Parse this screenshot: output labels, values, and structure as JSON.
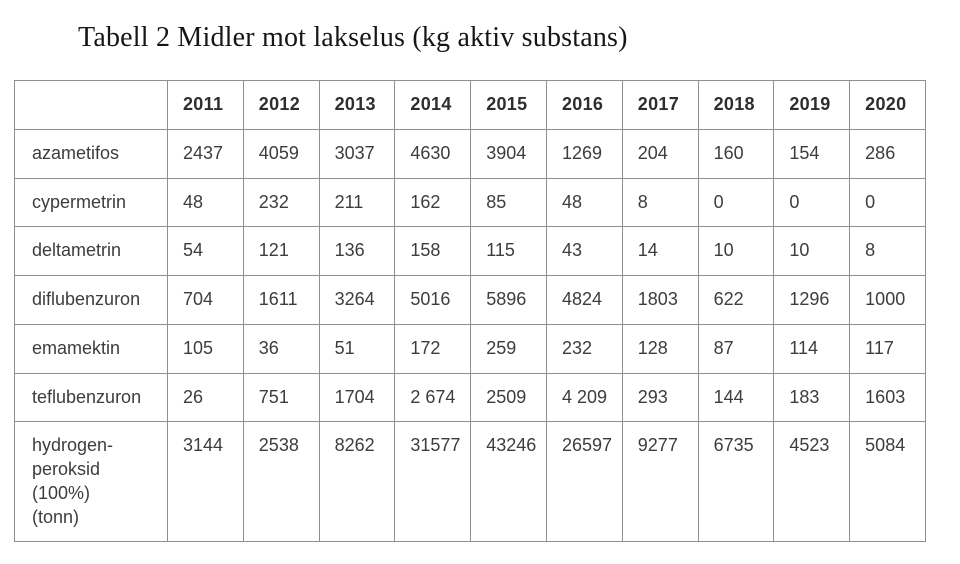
{
  "page": {
    "title": "Tabell 2 Midler mot lakselus (kg aktiv substans)"
  },
  "table": {
    "columns": [
      "",
      "2011",
      "2012",
      "2013",
      "2014",
      "2015",
      "2016",
      "2017",
      "2018",
      "2019",
      "2020"
    ],
    "rows": [
      {
        "label": "azametifos",
        "values": [
          "2437",
          "4059",
          "3037",
          "4630",
          "3904",
          "1269",
          "204",
          "160",
          "154",
          "286"
        ]
      },
      {
        "label": "cypermetrin",
        "values": [
          "48",
          "232",
          "211",
          "162",
          "85",
          "48",
          "8",
          "0",
          "0",
          "0"
        ]
      },
      {
        "label": "deltametrin",
        "values": [
          "54",
          "121",
          "136",
          "158",
          "115",
          "43",
          "14",
          "10",
          "10",
          "8"
        ]
      },
      {
        "label": "diflubenzuron",
        "values": [
          "704",
          "1611",
          "3264",
          "5016",
          "5896",
          "4824",
          "1803",
          "622",
          "1296",
          "1000"
        ]
      },
      {
        "label": "emamektin",
        "values": [
          "105",
          "36",
          "51",
          "172",
          "259",
          "232",
          "128",
          "87",
          "114",
          "117"
        ]
      },
      {
        "label": "teflubenzuron",
        "values": [
          "26",
          "751",
          "1704",
          "2 674",
          "2509",
          "4 209",
          "293",
          "144",
          "183",
          "1603"
        ]
      },
      {
        "label": "hydrogen-\nperoksid (100%)\n(tonn)",
        "values": [
          "3144",
          "2538",
          "8262",
          "31577",
          "43246",
          "26597",
          "9277",
          "6735",
          "4523",
          "5084"
        ]
      }
    ]
  },
  "colors": {
    "border": "#8f8f8f",
    "title_text": "#161616",
    "cell_text": "#3d3d3d",
    "background": "#ffffff"
  }
}
